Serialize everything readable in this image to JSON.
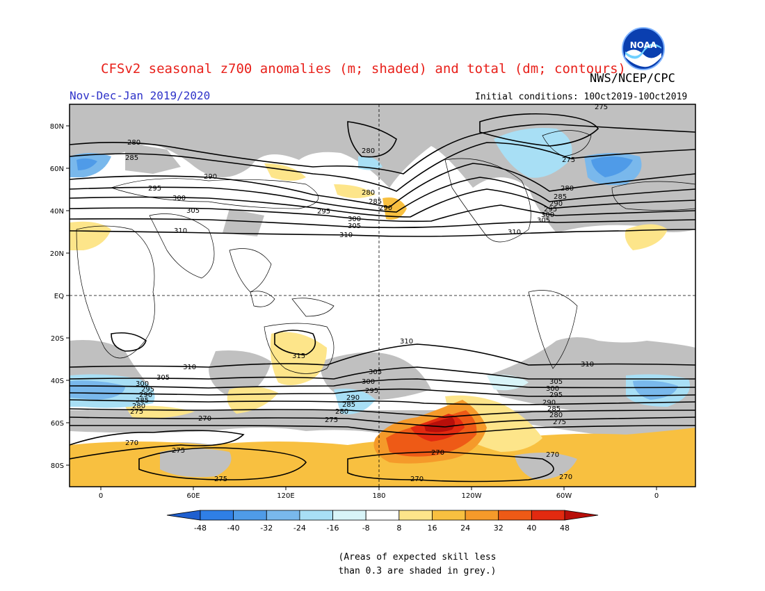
{
  "header": {
    "title": "CFSv2 seasonal z700 anomalies (m; shaded) and total (dm; contours)",
    "agency": "NWS/NCEP/CPC",
    "period": "Nov-Dec-Jan 2019/2020",
    "initial_conditions": "Initial conditions: 10Oct2019-10Oct2019",
    "logo_text": "NOAA"
  },
  "axes": {
    "lat_labels": [
      "80N",
      "60N",
      "40N",
      "20N",
      "EQ",
      "20S",
      "40S",
      "60S",
      "80S"
    ],
    "lon_labels": [
      "0",
      "60E",
      "120E",
      "180",
      "120W",
      "60W",
      "0"
    ]
  },
  "contours": {
    "labels": [
      "270",
      "275",
      "280",
      "285",
      "290",
      "295",
      "300",
      "305",
      "310",
      "315"
    ]
  },
  "colorbar": {
    "labels": [
      "-48",
      "-40",
      "-32",
      "-24",
      "-16",
      "-8",
      "8",
      "16",
      "24",
      "32",
      "40",
      "48"
    ],
    "colors": [
      "#1f5fcf",
      "#2f7fe6",
      "#4f9be8",
      "#79b8ec",
      "#a8dff5",
      "#d8f4f8",
      "#ffffff",
      "#fde58a",
      "#f8c040",
      "#f59a2a",
      "#ee5a16",
      "#e22a10",
      "#b80f0a"
    ]
  },
  "note": {
    "line1": "(Areas of expected skill less",
    "line2": "than 0.3 are shaded in grey.)"
  },
  "colors": {
    "title": "#e8201a",
    "period": "#2f33c9",
    "grey_shade": "#c0c0c0",
    "orange_shade": "#f8c040",
    "yellow_shade": "#fde58a"
  }
}
